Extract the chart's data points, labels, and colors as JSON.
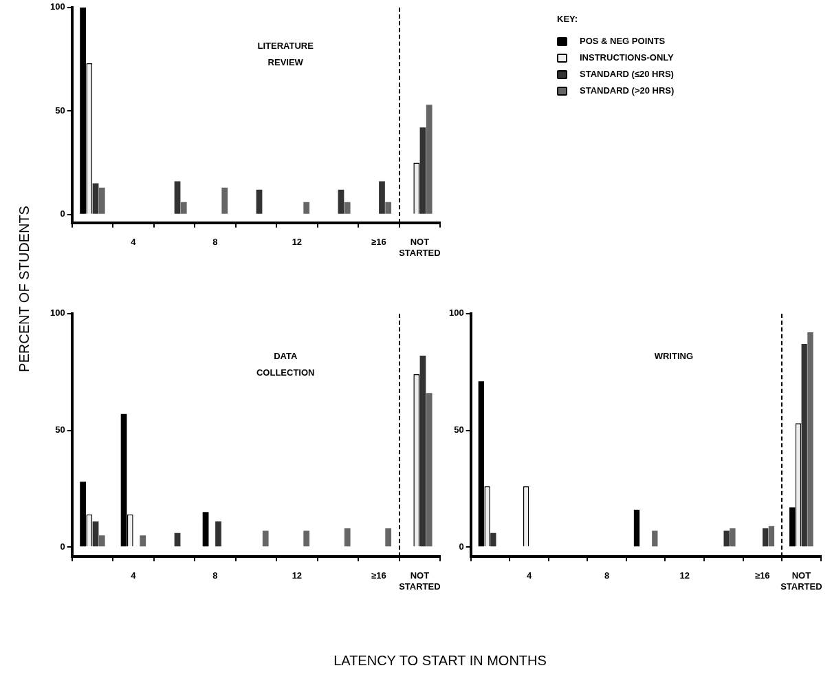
{
  "chart_data": [
    {
      "type": "bar",
      "title": "LITERATURE REVIEW",
      "ylabel": "PERCENT OF STUDENTS",
      "legend": "top right",
      "legend_title": "KEY:",
      "categories": [
        null,
        "4",
        null,
        "8",
        null,
        "12",
        null,
        "≥16",
        "NOT STARTED"
      ],
      "ylim": [
        -4,
        100
      ],
      "yticks": [
        0,
        50,
        100
      ],
      "series": [
        {
          "name": "POS & NEG POINTS",
          "color": "#000000",
          "values": [
            100,
            null,
            null,
            null,
            null,
            null,
            null,
            null,
            null
          ]
        },
        {
          "name": "INSTRUCTIONS-ONLY",
          "color": "#eeeeee",
          "values": [
            73,
            null,
            null,
            null,
            null,
            null,
            null,
            null,
            25
          ]
        },
        {
          "name": "STANDARD (≤20 HRS)",
          "color": "#333333",
          "values": [
            15,
            null,
            16,
            null,
            12,
            null,
            12,
            16,
            42
          ]
        },
        {
          "name": "STANDARD (>20 HRS)",
          "color": "#666666",
          "values": [
            13,
            null,
            6,
            13,
            null,
            6,
            6,
            6,
            53
          ]
        }
      ]
    },
    {
      "type": "bar",
      "title": "DATA COLLECTION",
      "xlabel": "LATENCY TO START IN MONTHS",
      "categories": [
        null,
        "4",
        null,
        "8",
        null,
        "12",
        null,
        "≥16",
        "NOT STARTED"
      ],
      "ylim": [
        -4,
        100
      ],
      "yticks": [
        0,
        50,
        100
      ],
      "series": [
        {
          "color": "#000000",
          "values": [
            28,
            57,
            null,
            15,
            null,
            null,
            null,
            null,
            null
          ]
        },
        {
          "color": "#eeeeee",
          "values": [
            14,
            14,
            null,
            null,
            null,
            null,
            null,
            null,
            74
          ]
        },
        {
          "color": "#333333",
          "values": [
            11,
            null,
            6,
            11,
            null,
            null,
            null,
            null,
            82
          ]
        },
        {
          "color": "#666666",
          "values": [
            5,
            5,
            null,
            null,
            7,
            7,
            8,
            8,
            66
          ]
        }
      ]
    },
    {
      "type": "bar",
      "title": "WRITING",
      "categories": [
        null,
        "4",
        null,
        "8",
        null,
        "12",
        null,
        "≥16",
        "NOT STARTED"
      ],
      "ylim": [
        -4,
        100
      ],
      "yticks": [
        0,
        50,
        100
      ],
      "series": [
        {
          "color": "#000000",
          "values": [
            71,
            null,
            null,
            null,
            16,
            null,
            null,
            null,
            17
          ]
        },
        {
          "color": "#eeeeee",
          "values": [
            26,
            26,
            null,
            null,
            null,
            null,
            null,
            null,
            53
          ]
        },
        {
          "color": "#333333",
          "values": [
            6,
            null,
            null,
            null,
            null,
            null,
            7,
            8,
            87
          ]
        },
        {
          "color": "#666666",
          "values": [
            null,
            null,
            null,
            null,
            7,
            null,
            8,
            9,
            92
          ]
        }
      ]
    }
  ]
}
